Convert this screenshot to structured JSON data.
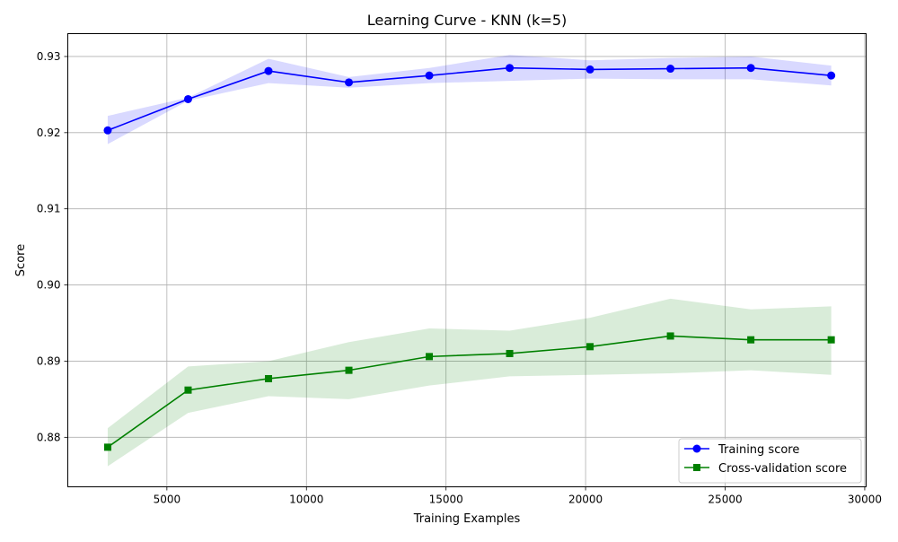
{
  "chart_data": {
    "type": "line",
    "title": "Learning Curve - KNN (k=5)",
    "xlabel": "Training Examples",
    "ylabel": "Score",
    "xlim": [
      1450,
      30050
    ],
    "ylim": [
      0.8735,
      0.933
    ],
    "x_ticks": [
      5000,
      10000,
      15000,
      20000,
      25000,
      30000
    ],
    "y_ticks": [
      0.88,
      0.89,
      0.9,
      0.91,
      0.92,
      0.93
    ],
    "x_tick_labels": [
      "5000",
      "10000",
      "15000",
      "20000",
      "25000",
      "30000"
    ],
    "y_tick_labels": [
      "0.88",
      "0.89",
      "0.90",
      "0.91",
      "0.92",
      "0.93"
    ],
    "grid": true,
    "legend_position": "lower-right",
    "x": [
      2880,
      5760,
      8640,
      11520,
      14400,
      17280,
      20160,
      23040,
      25920,
      28800
    ],
    "series": [
      {
        "name": "Training score",
        "color": "#0000ff",
        "marker": "circle",
        "values": [
          0.9203,
          0.9244,
          0.9281,
          0.9266,
          0.9275,
          0.9285,
          0.9283,
          0.9284,
          0.9285,
          0.9275
        ],
        "band_upper": [
          0.9222,
          0.9246,
          0.9297,
          0.9273,
          0.9285,
          0.9302,
          0.9295,
          0.9298,
          0.93,
          0.9288
        ],
        "band_lower": [
          0.9185,
          0.9242,
          0.9265,
          0.9259,
          0.9265,
          0.9268,
          0.9271,
          0.927,
          0.927,
          0.9262
        ],
        "band_color": "#0000ff"
      },
      {
        "name": "Cross-validation score",
        "color": "#008000",
        "marker": "square",
        "values": [
          0.8787,
          0.8862,
          0.8877,
          0.8888,
          0.8906,
          0.891,
          0.8919,
          0.8933,
          0.8928,
          0.8928
        ],
        "band_upper": [
          0.8812,
          0.8893,
          0.89,
          0.8925,
          0.8943,
          0.894,
          0.8957,
          0.8982,
          0.8968,
          0.8972
        ],
        "band_lower": [
          0.8762,
          0.8832,
          0.8854,
          0.885,
          0.8868,
          0.888,
          0.8882,
          0.8884,
          0.8888,
          0.8882
        ],
        "band_color": "#008000"
      }
    ]
  }
}
